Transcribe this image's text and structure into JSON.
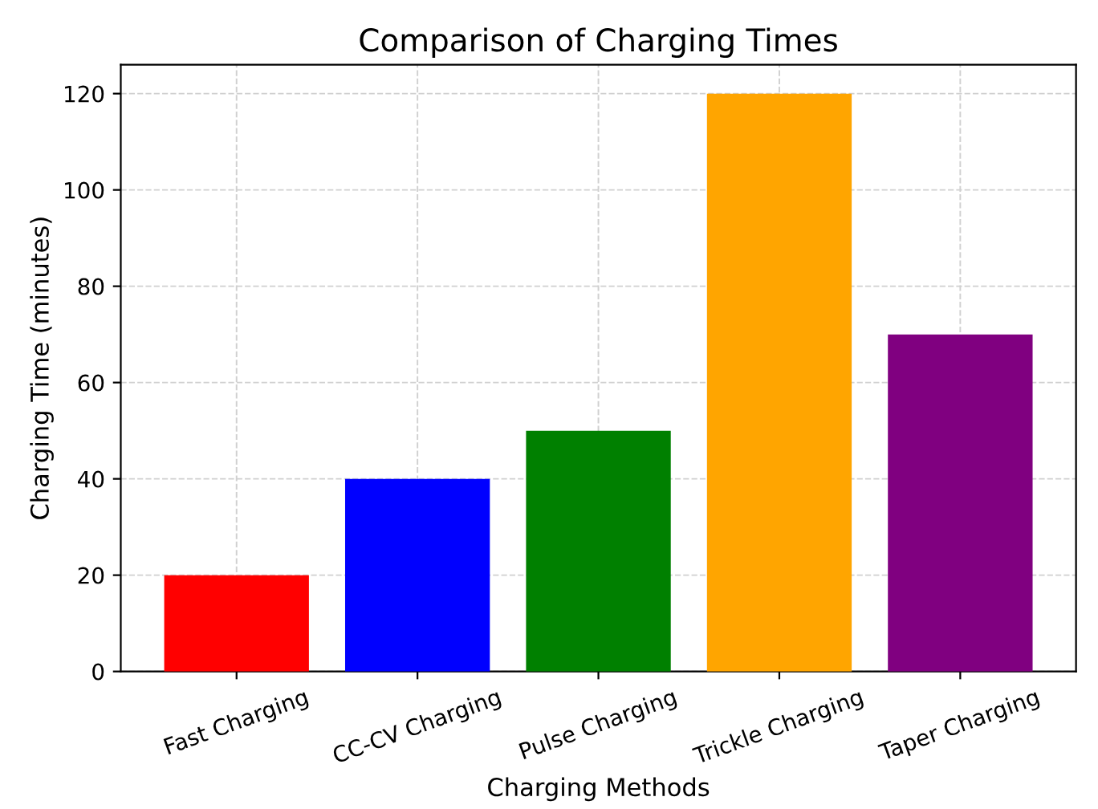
{
  "chart_data": {
    "type": "bar",
    "title": "Comparison of Charging Times",
    "xlabel": "Charging Methods",
    "ylabel": "Charging Time (minutes)",
    "categories": [
      "Fast Charging",
      "CC-CV Charging",
      "Pulse Charging",
      "Trickle Charging",
      "Taper Charging"
    ],
    "values": [
      20,
      40,
      50,
      120,
      70
    ],
    "colors": [
      "#ff0000",
      "#0000ff",
      "#008000",
      "#ffa500",
      "#800080"
    ],
    "ylim": [
      0,
      126
    ],
    "yticks": [
      0,
      20,
      40,
      60,
      80,
      100,
      120
    ],
    "grid": true,
    "line_style": "dashed"
  }
}
